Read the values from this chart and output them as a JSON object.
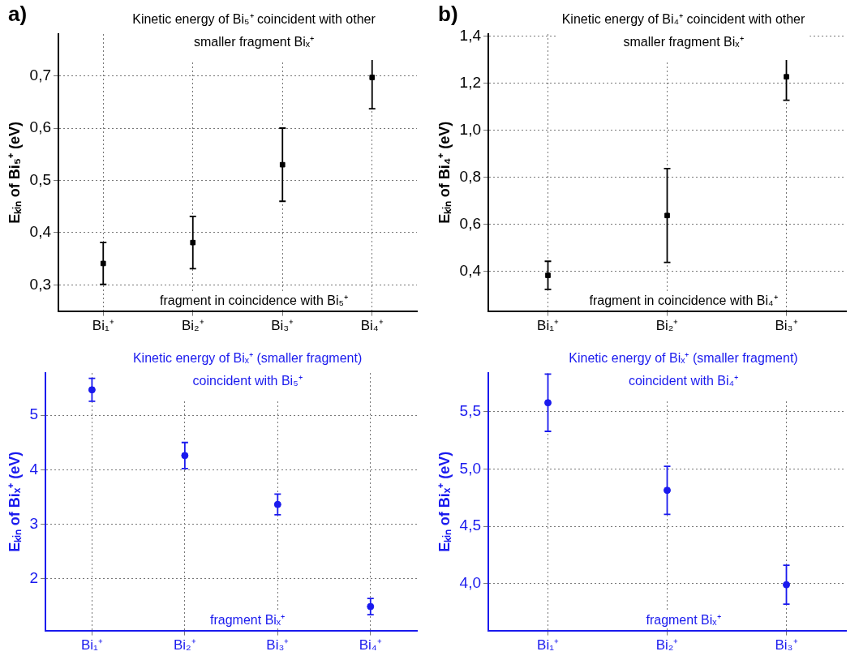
{
  "chart_data": [
    {
      "type": "scatter",
      "subtitle": "a)",
      "title": "Kinetic energy of Bi₅⁺ coincident with other smaller fragment Biₓ⁺",
      "ylabel": "Eₖᵢₙ of Bi₅⁺ (eV)",
      "annotations": [
        "fragment in coincidence with Bi₅⁺"
      ],
      "categories": [
        "Bi₁⁺",
        "Bi₂⁺",
        "Bi₃⁺",
        "Bi₄⁺"
      ],
      "series": [
        {
          "color": "#000000",
          "values": [
            0.341,
            0.381,
            0.53,
            0.697
          ],
          "errors": [
            0.04,
            0.05,
            0.07,
            0.06
          ]
        }
      ],
      "marker": "square",
      "grid": true,
      "ylim": [
        0.25,
        0.78
      ],
      "yticks": [
        {
          "value": 0.3,
          "label": "0,3"
        },
        {
          "value": 0.4,
          "label": "0,4"
        },
        {
          "value": 0.5,
          "label": "0,5"
        },
        {
          "value": 0.6,
          "label": "0,6"
        },
        {
          "value": 0.7,
          "label": "0,7"
        }
      ]
    },
    {
      "type": "scatter",
      "subtitle": "b)",
      "title": "Kinetic energy of Bi₄⁺ coincident with other smaller fragment Biₓ⁺",
      "ylabel": "Eₖᵢₙ of Bi₄⁺ (eV)",
      "annotations": [
        "fragment in coincidence with Bi₄⁺"
      ],
      "categories": [
        "Bi₁⁺",
        "Bi₂⁺",
        "Bi₃⁺"
      ],
      "series": [
        {
          "color": "#000000",
          "values": [
            0.382,
            0.637,
            1.228
          ],
          "errors": [
            0.06,
            0.2,
            0.1
          ]
        }
      ],
      "marker": "square",
      "grid": true,
      "ylim": [
        0.23,
        1.41
      ],
      "yticks": [
        {
          "value": 0.4,
          "label": "0,4"
        },
        {
          "value": 0.6,
          "label": "0,6"
        },
        {
          "value": 0.8,
          "label": "0,8"
        },
        {
          "value": 1.0,
          "label": "1,0"
        },
        {
          "value": 1.2,
          "label": "1,2"
        },
        {
          "value": 1.4,
          "label": "1,4"
        }
      ]
    },
    {
      "type": "scatter",
      "title": "Kinetic energy of Biₓ⁺ (smaller fragment) coincident with Bi₅⁺",
      "ylabel": "Eₖᵢₙ of Biₓ⁺ (eV)",
      "annotations": [
        "fragment Biₓ⁺"
      ],
      "categories": [
        "Bi₁⁺",
        "Bi₂⁺",
        "Bi₃⁺",
        "Bi₄⁺"
      ],
      "series": [
        {
          "color": "#1a1aee",
          "values": [
            5.47,
            4.26,
            3.36,
            1.48
          ],
          "errors": [
            0.21,
            0.24,
            0.19,
            0.15
          ]
        }
      ],
      "marker": "circle",
      "grid": true,
      "ylim": [
        1.04,
        5.78
      ],
      "yticks": [
        2,
        3,
        4,
        5
      ]
    },
    {
      "type": "scatter",
      "title": "Kinetic energy of Biₓ⁺ (smaller fragment) coincident with Bi₄⁺",
      "ylabel": "Eₖᵢₙ of Biₓ⁺ (eV)",
      "annotations": [
        "fragment Biₓ⁺"
      ],
      "categories": [
        "Bi₁⁺",
        "Bi₂⁺",
        "Bi₃⁺"
      ],
      "series": [
        {
          "color": "#1a1aee",
          "values": [
            5.58,
            4.815,
            3.99
          ],
          "errors": [
            0.25,
            0.21,
            0.17
          ]
        }
      ],
      "marker": "circle",
      "grid": true,
      "ylim": [
        3.59,
        5.84
      ],
      "yticks": [
        {
          "value": 4.0,
          "label": "4,0"
        },
        {
          "value": 4.5,
          "label": "4,5"
        },
        {
          "value": 5.0,
          "label": "5,0"
        },
        {
          "value": 5.5,
          "label": "5,5"
        }
      ]
    }
  ]
}
